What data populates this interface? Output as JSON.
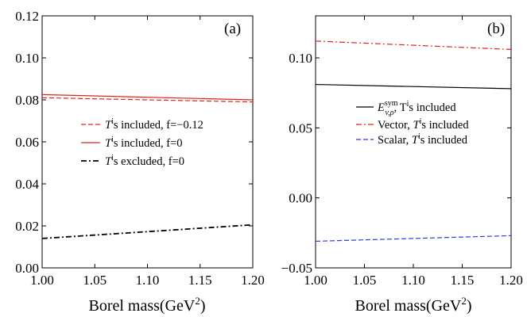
{
  "chart_data": [
    {
      "panel": "(a)",
      "type": "line",
      "xlabel": "Borel mass(GeV",
      "xlabel_sup": "2",
      "xlabel_close": ")",
      "ylabel": "",
      "xlim": [
        1.0,
        1.2
      ],
      "ylim": [
        0.0,
        0.12
      ],
      "xticks": [
        "1.00",
        "1.05",
        "1.10",
        "1.15",
        "1.20"
      ],
      "yticks": [
        "0.00",
        "0.02",
        "0.04",
        "0.06",
        "0.08",
        "0.10",
        "0.12"
      ],
      "grid": false,
      "legend_position": "center-left",
      "series": [
        {
          "name_sym": "T",
          "name_sup": "i",
          "name_rest": "s included, f=−0.12",
          "color": "#e0241c",
          "style": "dashed",
          "x": [
            1.0,
            1.2
          ],
          "y": [
            0.081,
            0.079
          ]
        },
        {
          "name_sym": "T",
          "name_sup": "i",
          "name_rest": "s included, f=0",
          "color": "#e0241c",
          "style": "solid",
          "x": [
            1.0,
            1.2
          ],
          "y": [
            0.0825,
            0.08
          ]
        },
        {
          "name_sym": "T",
          "name_sup": "i",
          "name_rest": "s excluded, f=0",
          "color": "#000000",
          "style": "dashdot",
          "x": [
            1.0,
            1.2
          ],
          "y": [
            0.014,
            0.0205
          ]
        }
      ]
    },
    {
      "panel": "(b)",
      "type": "line",
      "xlabel": "Borel mass(GeV",
      "xlabel_sup": "2",
      "xlabel_close": ")",
      "ylabel": "",
      "xlim": [
        1.0,
        1.2
      ],
      "ylim": [
        -0.05,
        0.13
      ],
      "xticks": [
        "1.00",
        "1.05",
        "1.10",
        "1.15",
        "1.20"
      ],
      "yticks": [
        "−0.05",
        "0.00",
        "0.05",
        "0.10"
      ],
      "ytick_values": [
        -0.05,
        0.0,
        0.05,
        0.1
      ],
      "grid": false,
      "legend_position": "center-right",
      "series": [
        {
          "name_sym": "E",
          "name_sup": "sym",
          "name_sub": "v,ρ",
          "name_rest": ", T",
          "name_sup2": "i",
          "name_tail": "s included",
          "color": "#000000",
          "style": "solid",
          "x": [
            1.0,
            1.2
          ],
          "y": [
            0.081,
            0.078
          ]
        },
        {
          "name_pre": "Vector, ",
          "name_sym": "T",
          "name_sup": "i",
          "name_rest": "s included",
          "color": "#e0241c",
          "style": "dashdot",
          "x": [
            1.0,
            1.2
          ],
          "y": [
            0.112,
            0.106
          ]
        },
        {
          "name_pre": "Scalar, ",
          "name_sym": "T",
          "name_sup": "i",
          "name_rest": "s included",
          "color": "#2b3fe0",
          "style": "dashed",
          "x": [
            1.0,
            1.2
          ],
          "y": [
            -0.031,
            -0.027
          ]
        }
      ]
    }
  ]
}
